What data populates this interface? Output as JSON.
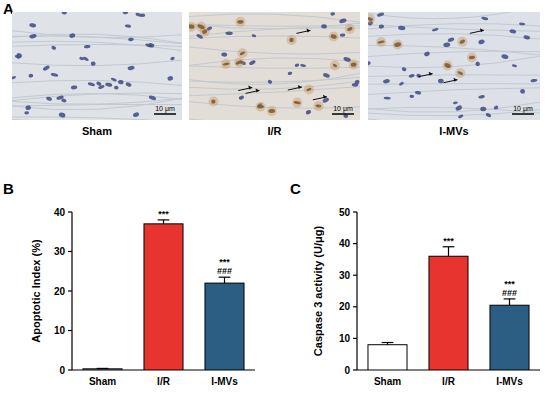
{
  "micrographs": {
    "panel": "A",
    "images": [
      {
        "label": "Sham",
        "scale_bar": "10 μm"
      },
      {
        "label": "I/R",
        "scale_bar": "10 μm"
      },
      {
        "label": "I-MVs",
        "scale_bar": "10 μm"
      }
    ]
  },
  "chart_data": [
    {
      "panel": "B",
      "type": "bar",
      "y_label": "Apoptotic Index (%)",
      "categories": [
        "Sham",
        "I/R",
        "I-MVs"
      ],
      "values": [
        0.3,
        37,
        22
      ],
      "errors": [
        0.1,
        1,
        1.5
      ],
      "colors": [
        "#ffffff",
        "#e8342e",
        "#2c5d82"
      ],
      "ylim": [
        0,
        40
      ],
      "yticks": [
        0,
        10,
        20,
        30,
        40
      ],
      "significance": [
        null,
        [
          "***"
        ],
        [
          "***",
          "###"
        ]
      ]
    },
    {
      "panel": "C",
      "type": "bar",
      "y_label": "Caspase 3 activity (U/μg)",
      "categories": [
        "Sham",
        "I/R",
        "I-MVs"
      ],
      "values": [
        8,
        36,
        20.5
      ],
      "errors": [
        0.7,
        3,
        2
      ],
      "colors": [
        "#ffffff",
        "#e8342e",
        "#2c5d82"
      ],
      "ylim": [
        0,
        50
      ],
      "yticks": [
        0,
        10,
        20,
        30,
        40,
        50
      ],
      "significance": [
        null,
        [
          "***"
        ],
        [
          "***",
          "###"
        ]
      ]
    }
  ]
}
